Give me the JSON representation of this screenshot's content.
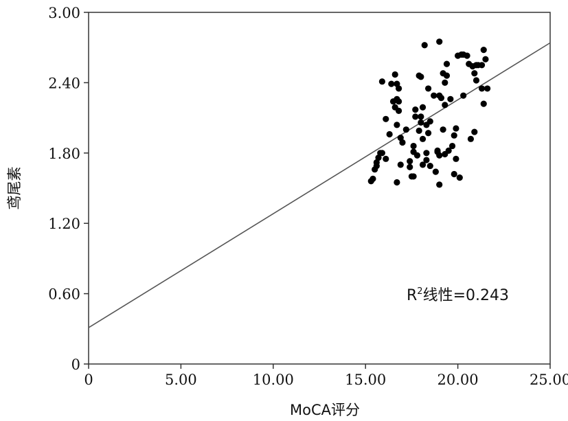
{
  "chart_data": {
    "type": "scatter",
    "xlabel": "MoCA评分",
    "ylabel": "鸢尾素",
    "xlim": [
      0,
      25
    ],
    "ylim": [
      0,
      3
    ],
    "x_ticks": [
      {
        "value": 0,
        "label": "0"
      },
      {
        "value": 5,
        "label": "5.00"
      },
      {
        "value": 10,
        "label": "10.00"
      },
      {
        "value": 15,
        "label": "15.00"
      },
      {
        "value": 20,
        "label": "20.00"
      },
      {
        "value": 25,
        "label": "25.00"
      }
    ],
    "y_ticks": [
      {
        "value": 0,
        "label": "0"
      },
      {
        "value": 0.6,
        "label": "0.60"
      },
      {
        "value": 1.2,
        "label": "1.20"
      },
      {
        "value": 1.8,
        "label": "1.80"
      },
      {
        "value": 2.4,
        "label": "2.40"
      },
      {
        "value": 3.0,
        "label": "3.00"
      }
    ],
    "grid": false,
    "fit_line": {
      "x": [
        0,
        25
      ],
      "y": [
        0.31,
        2.74
      ]
    },
    "annotation": {
      "base": "R",
      "sup": "2",
      "rest": "线性=0.243"
    },
    "points": [
      {
        "x": 15.3,
        "y": 1.56
      },
      {
        "x": 15.4,
        "y": 1.58
      },
      {
        "x": 15.5,
        "y": 1.66
      },
      {
        "x": 15.6,
        "y": 1.69
      },
      {
        "x": 15.6,
        "y": 1.72
      },
      {
        "x": 15.7,
        "y": 1.76
      },
      {
        "x": 15.8,
        "y": 1.8
      },
      {
        "x": 15.9,
        "y": 1.8
      },
      {
        "x": 15.9,
        "y": 2.41
      },
      {
        "x": 16.1,
        "y": 1.75
      },
      {
        "x": 16.1,
        "y": 2.09
      },
      {
        "x": 16.3,
        "y": 1.96
      },
      {
        "x": 16.4,
        "y": 2.39
      },
      {
        "x": 16.5,
        "y": 2.24
      },
      {
        "x": 16.6,
        "y": 2.19
      },
      {
        "x": 16.6,
        "y": 2.47
      },
      {
        "x": 16.7,
        "y": 2.39
      },
      {
        "x": 16.7,
        "y": 2.26
      },
      {
        "x": 16.7,
        "y": 2.04
      },
      {
        "x": 16.7,
        "y": 1.55
      },
      {
        "x": 16.8,
        "y": 2.35
      },
      {
        "x": 16.8,
        "y": 2.24
      },
      {
        "x": 16.8,
        "y": 2.16
      },
      {
        "x": 16.9,
        "y": 1.93
      },
      {
        "x": 16.9,
        "y": 1.7
      },
      {
        "x": 17.0,
        "y": 1.89
      },
      {
        "x": 17.2,
        "y": 2.0
      },
      {
        "x": 17.4,
        "y": 1.73
      },
      {
        "x": 17.4,
        "y": 1.68
      },
      {
        "x": 17.5,
        "y": 1.6
      },
      {
        "x": 17.6,
        "y": 1.86
      },
      {
        "x": 17.6,
        "y": 1.81
      },
      {
        "x": 17.6,
        "y": 1.6
      },
      {
        "x": 17.7,
        "y": 2.17
      },
      {
        "x": 17.7,
        "y": 2.11
      },
      {
        "x": 17.8,
        "y": 1.78
      },
      {
        "x": 17.9,
        "y": 2.46
      },
      {
        "x": 17.9,
        "y": 1.99
      },
      {
        "x": 18.0,
        "y": 2.45
      },
      {
        "x": 18.0,
        "y": 2.11
      },
      {
        "x": 18.0,
        "y": 2.06
      },
      {
        "x": 18.1,
        "y": 2.19
      },
      {
        "x": 18.1,
        "y": 1.92
      },
      {
        "x": 18.1,
        "y": 1.7
      },
      {
        "x": 18.2,
        "y": 2.72
      },
      {
        "x": 18.3,
        "y": 2.04
      },
      {
        "x": 18.3,
        "y": 1.8
      },
      {
        "x": 18.3,
        "y": 1.74
      },
      {
        "x": 18.4,
        "y": 2.35
      },
      {
        "x": 18.4,
        "y": 1.97
      },
      {
        "x": 18.5,
        "y": 2.07
      },
      {
        "x": 18.5,
        "y": 1.69
      },
      {
        "x": 18.7,
        "y": 2.29
      },
      {
        "x": 18.8,
        "y": 1.64
      },
      {
        "x": 18.9,
        "y": 1.82
      },
      {
        "x": 18.9,
        "y": 1.81
      },
      {
        "x": 19.0,
        "y": 2.75
      },
      {
        "x": 19.0,
        "y": 2.29
      },
      {
        "x": 19.0,
        "y": 1.78
      },
      {
        "x": 19.0,
        "y": 1.53
      },
      {
        "x": 19.1,
        "y": 2.27
      },
      {
        "x": 19.2,
        "y": 2.48
      },
      {
        "x": 19.2,
        "y": 2.0
      },
      {
        "x": 19.3,
        "y": 2.4
      },
      {
        "x": 19.3,
        "y": 2.21
      },
      {
        "x": 19.3,
        "y": 1.79
      },
      {
        "x": 19.4,
        "y": 2.56
      },
      {
        "x": 19.4,
        "y": 2.46
      },
      {
        "x": 19.5,
        "y": 1.82
      },
      {
        "x": 19.6,
        "y": 2.26
      },
      {
        "x": 19.7,
        "y": 1.86
      },
      {
        "x": 19.8,
        "y": 1.95
      },
      {
        "x": 19.8,
        "y": 1.62
      },
      {
        "x": 19.9,
        "y": 2.01
      },
      {
        "x": 19.9,
        "y": 1.75
      },
      {
        "x": 20.0,
        "y": 2.63
      },
      {
        "x": 20.1,
        "y": 1.59
      },
      {
        "x": 20.2,
        "y": 2.64
      },
      {
        "x": 20.3,
        "y": 2.64
      },
      {
        "x": 20.3,
        "y": 2.29
      },
      {
        "x": 20.5,
        "y": 2.63
      },
      {
        "x": 20.6,
        "y": 2.56
      },
      {
        "x": 20.7,
        "y": 1.92
      },
      {
        "x": 20.8,
        "y": 2.54
      },
      {
        "x": 20.9,
        "y": 2.48
      },
      {
        "x": 20.9,
        "y": 1.98
      },
      {
        "x": 21.0,
        "y": 2.55
      },
      {
        "x": 21.0,
        "y": 2.42
      },
      {
        "x": 21.1,
        "y": 2.55
      },
      {
        "x": 21.3,
        "y": 2.55
      },
      {
        "x": 21.3,
        "y": 2.35
      },
      {
        "x": 21.4,
        "y": 2.68
      },
      {
        "x": 21.4,
        "y": 2.22
      },
      {
        "x": 21.5,
        "y": 2.6
      },
      {
        "x": 21.6,
        "y": 2.35
      }
    ]
  }
}
